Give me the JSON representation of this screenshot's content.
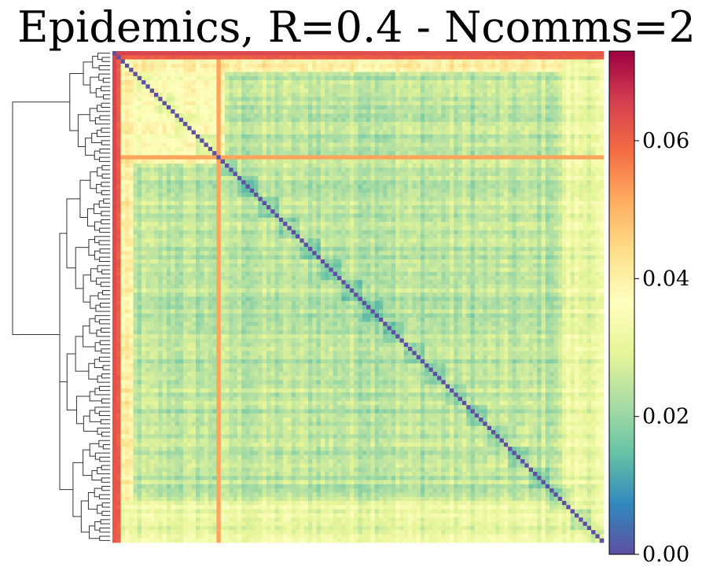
{
  "chart_data": {
    "type": "heatmap",
    "title": "Epidemics, R=0.4 - Ncomms=2",
    "xlabel": "",
    "ylabel": "",
    "n_nodes": 118,
    "diagonal_value": 0.0,
    "dendrogram": "left",
    "colormap": "Spectral_r",
    "colormap_stops": [
      "#5e4fa2",
      "#3288bd",
      "#66c2a5",
      "#abdda4",
      "#e6f598",
      "#ffffbf",
      "#fee08b",
      "#fdae61",
      "#f46d43",
      "#d53e4f",
      "#9e0142"
    ],
    "colorbar": {
      "vmin": 0.0,
      "vmax": 0.073,
      "ticks": [
        0.0,
        0.02,
        0.04,
        0.06
      ],
      "tick_labels": [
        "0.00",
        "0.02",
        "0.04",
        "0.06"
      ]
    },
    "block_structure": {
      "top_cluster_end_index": 26,
      "typical_value_top_cluster": 0.036,
      "typical_value_bottom_cluster": 0.024,
      "first_row_value": 0.065,
      "first_columns_value": 0.062,
      "bright_stripe_index": 25,
      "bright_stripe_value": 0.052
    }
  }
}
